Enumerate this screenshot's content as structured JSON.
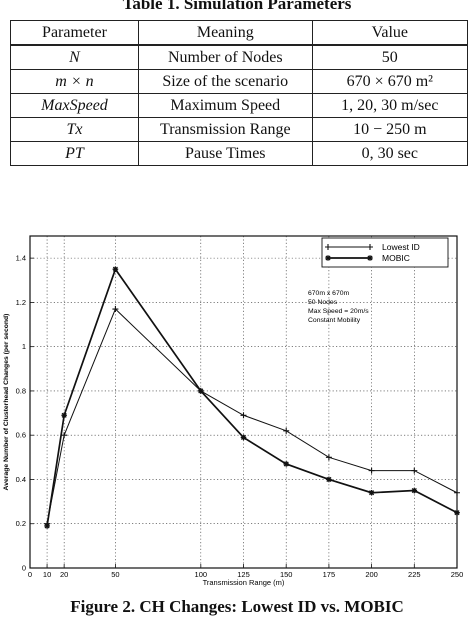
{
  "table": {
    "title": "Table 1.  Simulation Parameters",
    "headers": [
      "Parameter",
      "Meaning",
      "Value"
    ],
    "rows": [
      {
        "parameter": "N",
        "meaning": "Number of Nodes",
        "value": "50"
      },
      {
        "parameter": "m × n",
        "meaning": "Size of the scenario",
        "value": "670 × 670 m²"
      },
      {
        "parameter": "MaxSpeed",
        "meaning": "Maximum Speed",
        "value": "1, 20, 30 m/sec"
      },
      {
        "parameter": "Tx",
        "meaning": "Transmission Range",
        "value": "10 − 250 m"
      },
      {
        "parameter": "PT",
        "meaning": "Pause Times",
        "value": "0, 30 sec"
      }
    ]
  },
  "chart_data": {
    "type": "line",
    "xlabel": "Transmission Range (m)",
    "ylabel": "Average Number of Clusterhead Changes (per second)",
    "xlim": [
      0,
      250
    ],
    "ylim": [
      0,
      1.5
    ],
    "xticks": [
      0,
      10,
      20,
      50,
      100,
      125,
      150,
      175,
      200,
      225,
      250
    ],
    "yticks": [
      0,
      0.2,
      0.4,
      0.6,
      0.8,
      1,
      1.2,
      1.4
    ],
    "yticklabels": [
      "0",
      "0.2",
      "0.4",
      "0.6",
      "0.8",
      "1",
      "1.2",
      "1.4"
    ],
    "grid": true,
    "legend_position": "top-right",
    "series": [
      {
        "name": "Lowest ID",
        "marker": "plus",
        "x": [
          10,
          20,
          50,
          100,
          125,
          150,
          175,
          200,
          225,
          250
        ],
        "y": [
          0.2,
          0.6,
          1.17,
          0.8,
          0.69,
          0.62,
          0.5,
          0.44,
          0.44,
          0.34
        ]
      },
      {
        "name": "MOBIC",
        "marker": "star",
        "x": [
          10,
          20,
          50,
          100,
          125,
          150,
          175,
          200,
          225,
          250
        ],
        "y": [
          0.19,
          0.69,
          1.35,
          0.8,
          0.59,
          0.47,
          0.4,
          0.34,
          0.35,
          0.25
        ]
      }
    ],
    "annotation": [
      "670m x 670m",
      "50 Nodes",
      "Max Speed = 20m/s",
      "Constant Mobility"
    ]
  },
  "figure": {
    "caption": "Figure 2.  CH Changes: Lowest ID vs. MOBIC"
  }
}
